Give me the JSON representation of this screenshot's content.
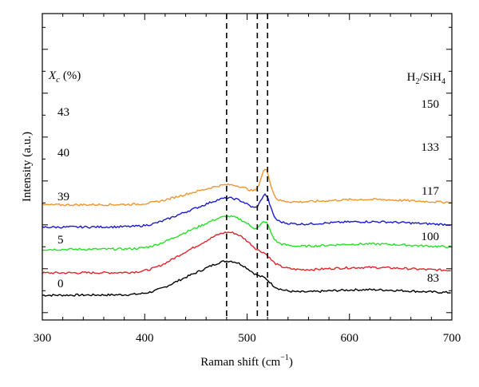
{
  "chart_data": {
    "type": "line",
    "xlabel_main": "Raman shift (cm",
    "xlabel_sup": "−1",
    "xlabel_close": ")",
    "ylabel": "Intensity (a.u.)",
    "xlim": [
      300,
      700
    ],
    "x_ticks": [
      "300",
      "400",
      "500",
      "600",
      "700"
    ],
    "left_header": {
      "symbol": "X",
      "subscript": "c",
      "rest": " (%)"
    },
    "right_header": {
      "prefix": "H",
      "sub1": "2",
      "mid": "/SiH",
      "sub2": "4"
    },
    "reference_lines": [
      480,
      510,
      520
    ],
    "grid": false,
    "colors": {
      "s0": "#000000",
      "s1": "#e0242b",
      "s2": "#26e026",
      "s3": "#1a1ad0",
      "s4": "#f0952e"
    },
    "series": [
      {
        "key": "s0",
        "xc": "0",
        "ratio": "83",
        "offset": 0,
        "amp": 26,
        "cryst": 3
      },
      {
        "key": "s1",
        "xc": "5",
        "ratio": "100",
        "offset": 18,
        "amp": 31,
        "cryst": 3
      },
      {
        "key": "s2",
        "xc": "39",
        "ratio": "117",
        "offset": 37,
        "amp": 25,
        "cryst": 12
      },
      {
        "key": "s3",
        "xc": "40",
        "ratio": "133",
        "offset": 55,
        "amp": 22,
        "cryst": 17
      },
      {
        "key": "s4",
        "xc": "43",
        "ratio": "150",
        "offset": 73,
        "amp": 15,
        "cryst": 22
      }
    ]
  }
}
